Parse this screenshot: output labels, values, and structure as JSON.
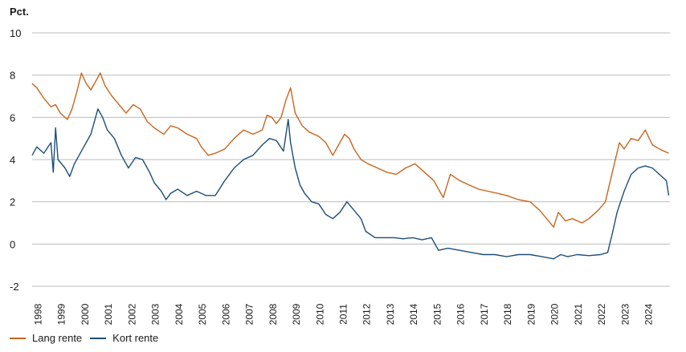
{
  "colors": {
    "lang": "#c8661e",
    "kort": "#1d4e79",
    "grid": "#bdbdbd",
    "text": "#1a1a1a"
  },
  "chart_data": {
    "type": "line",
    "ylabel": "Pct.",
    "ylim": [
      -2,
      10
    ],
    "yticks": [
      -2,
      0,
      2,
      4,
      6,
      8,
      10
    ],
    "xlim": [
      1997.8,
      2024.95
    ],
    "xticks": [
      "1998",
      "1999",
      "2000",
      "2001",
      "2002",
      "2003",
      "2004",
      "2005",
      "2006",
      "2007",
      "2008",
      "2009",
      "2010",
      "2011",
      "2012",
      "2013",
      "2014",
      "2015",
      "2016",
      "2017",
      "2018",
      "2019",
      "2020",
      "2021",
      "2022",
      "2023",
      "2024"
    ],
    "grid": true,
    "legend": "bottom-left",
    "series": [
      {
        "name": "Lang rente",
        "color": "#c8661e",
        "x": [
          1997.8,
          1998.0,
          1998.3,
          1998.6,
          1998.8,
          1999.0,
          1999.3,
          1999.5,
          1999.7,
          1999.9,
          2000.1,
          2000.3,
          2000.5,
          2000.7,
          2000.9,
          2001.2,
          2001.5,
          2001.8,
          2002.1,
          2002.4,
          2002.7,
          2003.0,
          2003.4,
          2003.7,
          2004.0,
          2004.4,
          2004.8,
          2005.0,
          2005.3,
          2005.6,
          2006.0,
          2006.4,
          2006.8,
          2007.2,
          2007.6,
          2007.8,
          2008.0,
          2008.2,
          2008.4,
          2008.6,
          2008.8,
          2009.0,
          2009.3,
          2009.6,
          2010.0,
          2010.3,
          2010.6,
          2010.9,
          2011.1,
          2011.3,
          2011.5,
          2011.8,
          2012.1,
          2012.5,
          2012.9,
          2013.3,
          2013.7,
          2014.1,
          2014.5,
          2014.9,
          2015.1,
          2015.3,
          2015.6,
          2016.0,
          2016.4,
          2016.8,
          2017.2,
          2017.6,
          2018.0,
          2018.5,
          2019.0,
          2019.4,
          2019.7,
          2020.0,
          2020.2,
          2020.5,
          2020.8,
          2021.2,
          2021.5,
          2021.9,
          2022.2,
          2022.5,
          2022.8,
          2023.0,
          2023.3,
          2023.6,
          2023.9,
          2024.2,
          2024.5,
          2024.9
        ],
        "y": [
          7.6,
          7.4,
          6.9,
          6.5,
          6.6,
          6.2,
          5.9,
          6.4,
          7.2,
          8.1,
          7.6,
          7.3,
          7.7,
          8.1,
          7.5,
          7.0,
          6.6,
          6.2,
          6.6,
          6.4,
          5.8,
          5.5,
          5.2,
          5.6,
          5.5,
          5.2,
          5.0,
          4.6,
          4.2,
          4.3,
          4.5,
          5.0,
          5.4,
          5.2,
          5.4,
          6.1,
          6.0,
          5.7,
          6.0,
          6.8,
          7.4,
          6.2,
          5.6,
          5.3,
          5.1,
          4.8,
          4.2,
          4.8,
          5.2,
          5.0,
          4.5,
          4.0,
          3.8,
          3.6,
          3.4,
          3.3,
          3.6,
          3.8,
          3.4,
          3.0,
          2.6,
          2.2,
          3.3,
          3.0,
          2.8,
          2.6,
          2.5,
          2.4,
          2.3,
          2.1,
          2.0,
          1.6,
          1.2,
          0.8,
          1.5,
          1.1,
          1.2,
          1.0,
          1.2,
          1.6,
          2.0,
          3.4,
          4.8,
          4.5,
          5.0,
          4.9,
          5.4,
          4.7,
          4.5,
          4.3
        ]
      },
      {
        "name": "Kort rente",
        "color": "#1d4e79",
        "x": [
          1997.8,
          1998.0,
          1998.3,
          1998.6,
          1998.7,
          1998.8,
          1998.9,
          1999.2,
          1999.4,
          1999.6,
          1999.8,
          2000.0,
          2000.3,
          2000.6,
          2000.8,
          2001.0,
          2001.3,
          2001.6,
          2001.9,
          2002.2,
          2002.5,
          2002.8,
          2003.0,
          2003.3,
          2003.5,
          2003.7,
          2004.0,
          2004.4,
          2004.8,
          2005.2,
          2005.6,
          2006.0,
          2006.4,
          2006.8,
          2007.2,
          2007.6,
          2007.9,
          2008.2,
          2008.5,
          2008.7,
          2008.8,
          2009.0,
          2009.2,
          2009.4,
          2009.7,
          2010.0,
          2010.3,
          2010.6,
          2010.9,
          2011.2,
          2011.5,
          2011.8,
          2012.0,
          2012.4,
          2012.8,
          2013.2,
          2013.6,
          2014.0,
          2014.4,
          2014.8,
          2015.0,
          2015.1,
          2015.5,
          2016.0,
          2016.5,
          2017.0,
          2017.5,
          2018.0,
          2018.5,
          2019.0,
          2019.5,
          2020.0,
          2020.3,
          2020.6,
          2021.0,
          2021.5,
          2022.0,
          2022.3,
          2022.5,
          2022.7,
          2023.0,
          2023.3,
          2023.6,
          2023.9,
          2024.2,
          2024.5,
          2024.8,
          2024.9
        ],
        "y": [
          4.2,
          4.6,
          4.3,
          4.8,
          3.4,
          5.5,
          4.0,
          3.6,
          3.2,
          3.8,
          4.2,
          4.6,
          5.2,
          6.4,
          6.0,
          5.4,
          5.0,
          4.2,
          3.6,
          4.1,
          4.0,
          3.4,
          2.9,
          2.5,
          2.1,
          2.4,
          2.6,
          2.3,
          2.5,
          2.3,
          2.3,
          3.0,
          3.6,
          4.0,
          4.2,
          4.7,
          5.0,
          4.9,
          4.4,
          5.9,
          4.8,
          3.6,
          2.8,
          2.4,
          2.0,
          1.9,
          1.4,
          1.2,
          1.5,
          2.0,
          1.6,
          1.2,
          0.6,
          0.3,
          0.3,
          0.3,
          0.25,
          0.3,
          0.2,
          0.3,
          -0.1,
          -0.3,
          -0.2,
          -0.3,
          -0.4,
          -0.5,
          -0.5,
          -0.6,
          -0.5,
          -0.5,
          -0.6,
          -0.7,
          -0.5,
          -0.6,
          -0.5,
          -0.55,
          -0.5,
          -0.4,
          0.5,
          1.5,
          2.5,
          3.3,
          3.6,
          3.7,
          3.6,
          3.3,
          3.0,
          2.3
        ]
      }
    ]
  }
}
